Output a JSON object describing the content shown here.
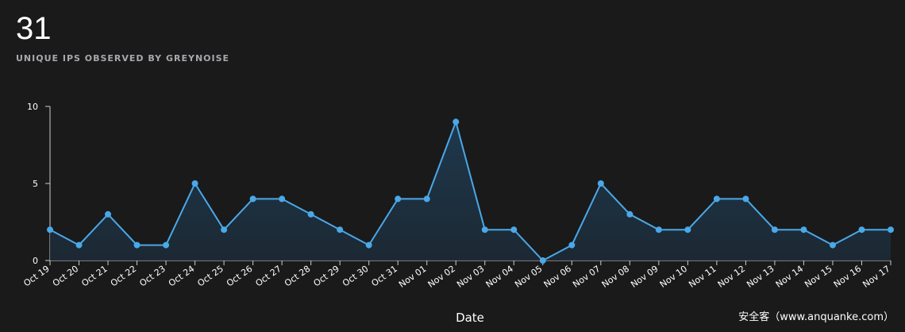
{
  "stat": {
    "value": "31",
    "label": "UNIQUE IPS OBSERVED BY GREYNOISE"
  },
  "watermark": "安全客（www.anquanke.com）",
  "colors": {
    "background": "#1a1a1b",
    "line": "#4aa8e8",
    "area_top": "#1f3a50",
    "axis": "#cccccc",
    "text": "#ffffff"
  },
  "chart_data": {
    "type": "area",
    "title": "",
    "xlabel": "Date",
    "ylabel": "",
    "ylim": [
      0,
      10
    ],
    "yticks": [
      0,
      5,
      10
    ],
    "grid": false,
    "categories": [
      "Oct 19",
      "Oct 20",
      "Oct 21",
      "Oct 22",
      "Oct 23",
      "Oct 24",
      "Oct 25",
      "Oct 26",
      "Oct 27",
      "Oct 28",
      "Oct 29",
      "Oct 30",
      "Oct 31",
      "Nov 01",
      "Nov 02",
      "Nov 03",
      "Nov 04",
      "Nov 05",
      "Nov 06",
      "Nov 07",
      "Nov 08",
      "Nov 09",
      "Nov 10",
      "Nov 11",
      "Nov 12",
      "Nov 13",
      "Nov 14",
      "Nov 15",
      "Nov 16",
      "Nov 17"
    ],
    "series": [
      {
        "values": [
          2,
          1,
          3,
          1,
          1,
          5,
          2,
          4,
          4,
          3,
          2,
          1,
          4,
          4,
          9,
          2,
          2,
          0,
          1,
          5,
          3,
          2,
          2,
          4,
          4,
          2,
          2,
          1,
          2,
          2
        ]
      }
    ]
  }
}
